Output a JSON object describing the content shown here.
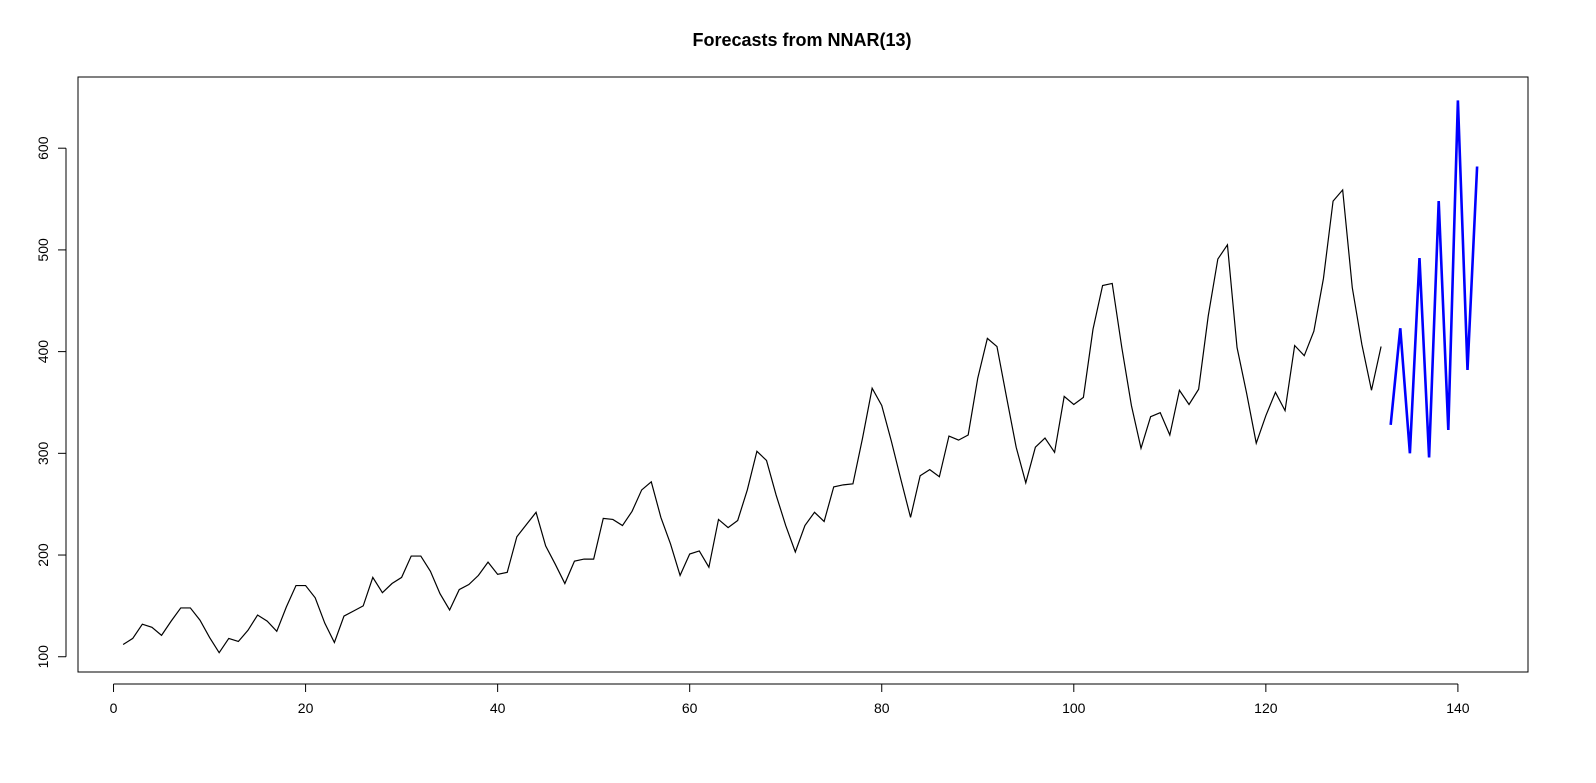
{
  "chart_data": {
    "type": "line",
    "title": "Forecasts from NNAR(13)",
    "xlabel": "",
    "ylabel": "",
    "xlim": [
      -3.7,
      147.3
    ],
    "ylim": [
      85,
      670
    ],
    "x_ticks": [
      0,
      20,
      40,
      60,
      80,
      100,
      120,
      140
    ],
    "y_ticks": [
      100,
      200,
      300,
      400,
      500,
      600
    ],
    "grid": false,
    "legend": "none",
    "series": [
      {
        "color": "#000000",
        "x_start": 1,
        "values": [
          112,
          118,
          132,
          129,
          121,
          135,
          148,
          148,
          136,
          119,
          104,
          118,
          115,
          126,
          141,
          135,
          125,
          149,
          170,
          170,
          158,
          133,
          114,
          140,
          145,
          150,
          178,
          163,
          172,
          178,
          199,
          199,
          184,
          162,
          146,
          166,
          171,
          180,
          193,
          181,
          183,
          218,
          230,
          242,
          209,
          191,
          172,
          194,
          196,
          196,
          236,
          235,
          229,
          243,
          264,
          272,
          237,
          211,
          180,
          201,
          204,
          188,
          235,
          227,
          234,
          264,
          302,
          293,
          259,
          229,
          203,
          229,
          242,
          233,
          267,
          269,
          270,
          315,
          364,
          347,
          312,
          274,
          237,
          278,
          284,
          277,
          317,
          313,
          318,
          374,
          413,
          405,
          355,
          306,
          271,
          306,
          315,
          301,
          356,
          348,
          355,
          422,
          465,
          467,
          404,
          347,
          305,
          336,
          340,
          318,
          362,
          348,
          363,
          435,
          491,
          505,
          404,
          359,
          310,
          337,
          360,
          342,
          406,
          396,
          420,
          472,
          548,
          559,
          463,
          407,
          362,
          405
        ]
      },
      {
        "color": "#0000ff",
        "x_start": 133,
        "values": [
          328,
          423,
          300,
          492,
          296,
          548,
          323,
          647,
          382,
          582
        ]
      }
    ]
  }
}
